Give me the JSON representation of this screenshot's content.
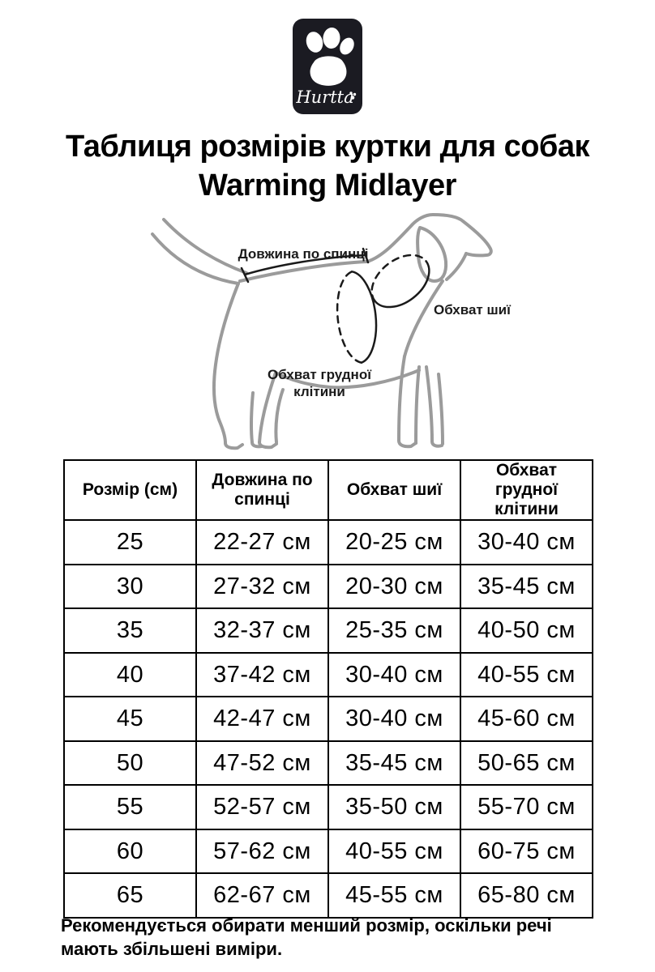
{
  "logo": {
    "brand": "Hurtta",
    "bg_color": "#1b1b22",
    "paw_color": "#ffffff"
  },
  "title": {
    "line1": "Таблиця розмірів куртки для собак",
    "line2": "Warming Midlayer"
  },
  "diagram": {
    "outline_color": "#9b9b9b",
    "measure_color": "#1a1a1a",
    "labels": {
      "back_length": "Довжина по спинці",
      "neck_girth": "Обхват шиї",
      "chest_girth_line1": "Обхват грудної",
      "chest_girth_line2": "клітини"
    }
  },
  "table": {
    "headers": [
      "Розмір (см)",
      "Довжина по спинці",
      "Обхват шиї",
      "Обхват грудної клітини"
    ],
    "rows": [
      [
        "25",
        "22-27 см",
        "20-25 см",
        "30-40 см"
      ],
      [
        "30",
        "27-32 см",
        "20-30 см",
        "35-45 см"
      ],
      [
        "35",
        "32-37 см",
        "25-35 см",
        "40-50 см"
      ],
      [
        "40",
        "37-42 см",
        "30-40 см",
        "40-55 см"
      ],
      [
        "45",
        "42-47 см",
        "30-40 см",
        "45-60 см"
      ],
      [
        "50",
        "47-52 см",
        "35-45 см",
        "50-65 см"
      ],
      [
        "55",
        "52-57 см",
        "35-50 см",
        "55-70 см"
      ],
      [
        "60",
        "57-62 см",
        "40-55 см",
        "60-75 см"
      ],
      [
        "65",
        "62-67 см",
        "45-55 см",
        "65-80 см"
      ]
    ]
  },
  "footnote": {
    "line1": "Рекомендується обирати менший розмір, оскільки речі",
    "line2": "мають збільшені виміри."
  }
}
